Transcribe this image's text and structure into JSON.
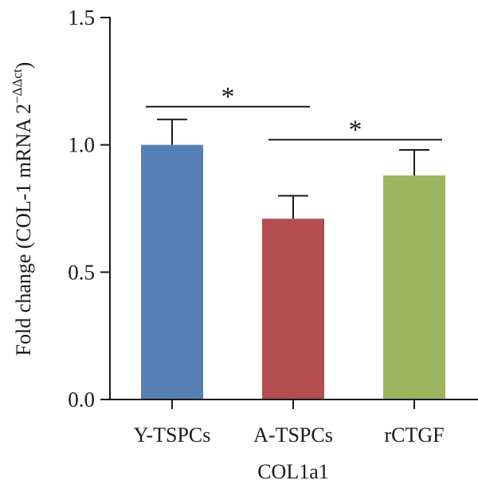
{
  "chart_data": {
    "type": "bar",
    "categories": [
      "Y-TSPCs",
      "A-TSPCs",
      "rCTGF"
    ],
    "values": [
      1.0,
      0.71,
      0.88
    ],
    "error": [
      0.1,
      0.09,
      0.1
    ],
    "colors": [
      "#5680b4",
      "#b34d4e",
      "#9bb55e"
    ],
    "ylim": [
      0,
      1.5
    ],
    "yticks": [
      0.0,
      0.5,
      1.0,
      1.5
    ],
    "ytick_labels": [
      "0.0",
      "0.5",
      "1.0",
      "1.5"
    ],
    "xlabel": "COL1a1",
    "ylabel_main": "Fold change (COL-1 mRNA 2",
    "ylabel_sup": "−ΔΔct",
    "ylabel_close": ")",
    "significance": [
      {
        "from": 0,
        "to": 1,
        "label": "*",
        "y": 1.15
      },
      {
        "from": 1,
        "to": 2,
        "label": "*",
        "y": 1.02
      }
    ]
  }
}
